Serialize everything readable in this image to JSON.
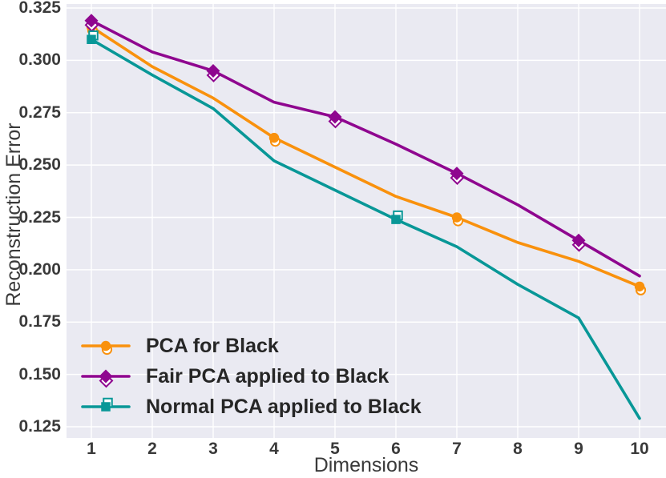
{
  "figure": {
    "background": "#FFFFFF",
    "plot_background": "#EAEAF2",
    "gridline_color": "#FFFFFF",
    "tick_label_color": "#3A3A3A",
    "axis_label_color": "#3A3A3A",
    "legend_text_color": "#262626"
  },
  "chart_data": {
    "type": "line",
    "title": "",
    "xlabel": "Dimensions",
    "ylabel": "Reconstruction Error",
    "grid": true,
    "legend_position": "lower left",
    "x": [
      1,
      2,
      3,
      4,
      5,
      6,
      7,
      8,
      9,
      10
    ],
    "x_tick_labels": [
      "1",
      "2",
      "3",
      "4",
      "5",
      "6",
      "7",
      "8",
      "9",
      "10"
    ],
    "y_tick_labels": [
      "0.325",
      "0.300",
      "0.275",
      "0.250",
      "0.225",
      "0.200",
      "0.175",
      "0.150",
      "0.125"
    ],
    "ylim": [
      0.125,
      0.325
    ],
    "y_tick_step": 0.025,
    "series": [
      {
        "name": "PCA for Black",
        "color": "#F9910D",
        "marker": "circle",
        "marker_indices": [
          0,
          3,
          6,
          9
        ],
        "values": [
          0.316,
          0.297,
          0.282,
          0.263,
          0.249,
          0.235,
          0.225,
          0.213,
          0.204,
          0.192
        ]
      },
      {
        "name": "Fair PCA applied to Black",
        "color": "#8F068F",
        "marker": "diamond",
        "marker_indices": [
          0,
          2,
          4,
          6,
          8
        ],
        "values": [
          0.319,
          0.304,
          0.295,
          0.28,
          0.273,
          0.26,
          0.246,
          0.231,
          0.214,
          0.197
        ]
      },
      {
        "name": "Normal PCA applied to Black",
        "color": "#089797",
        "marker": "square",
        "marker_indices": [
          0,
          5
        ],
        "values": [
          0.31,
          0.293,
          0.277,
          0.252,
          0.238,
          0.224,
          0.211,
          0.193,
          0.177,
          0.129
        ]
      }
    ]
  }
}
